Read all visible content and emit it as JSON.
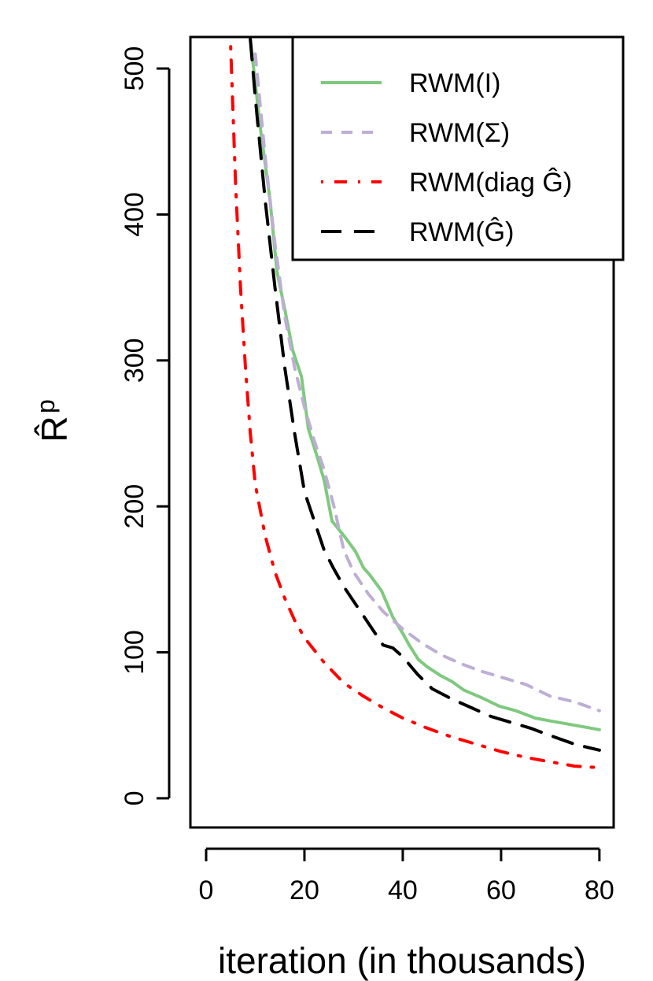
{
  "chart_data": {
    "type": "line",
    "title": "",
    "xlabel": "iteration (in thousands)",
    "ylabel": "R̂",
    "ylabel_superscript": "p",
    "xlim": [
      -3.2,
      82.9
    ],
    "ylim": [
      -20,
      521.6
    ],
    "xticks": [
      0,
      20,
      40,
      60,
      80
    ],
    "yticks": [
      0,
      100,
      200,
      300,
      400,
      500
    ],
    "grid": false,
    "legend_position": "top-right",
    "series": [
      {
        "name": "RWM(I)",
        "color": "#7fc97f",
        "dash": "solid",
        "x": [
          9,
          10,
          11,
          12,
          13,
          14.4,
          16,
          17.6,
          19.4,
          20.8,
          22.5,
          24,
          25.6,
          28,
          30.4,
          32,
          33.3,
          35.7,
          38,
          40,
          41.3,
          43.2,
          45,
          47.7,
          50,
          52.5,
          56,
          59.7,
          63,
          66.9,
          70,
          75,
          80
        ],
        "y": [
          520,
          490,
          460,
          435,
          410,
          361,
          335,
          307,
          289,
          253,
          235,
          218,
          190,
          180,
          169,
          158,
          153,
          142,
          124,
          113,
          105,
          95,
          90,
          84,
          80,
          74,
          69,
          63,
          60,
          55,
          53,
          50,
          47
        ]
      },
      {
        "name": "RWM(Σ)",
        "color": "#beaed4",
        "dash": "dashed",
        "x": [
          10,
          12,
          14,
          16,
          18,
          20,
          22,
          24,
          26,
          28,
          30,
          33,
          36,
          40,
          44,
          48,
          52,
          56,
          60,
          65,
          70,
          75,
          80
        ],
        "y": [
          510,
          440,
          380,
          330,
          295,
          268,
          245,
          225,
          200,
          170,
          155,
          140,
          128,
          116,
          106,
          98,
          92,
          87,
          83,
          78,
          70,
          66,
          60
        ]
      },
      {
        "name": "RWM(diag Ĝ)",
        "color": "#ff0000",
        "dash": "dotdash",
        "x": [
          5,
          6,
          7,
          8,
          9,
          10,
          12,
          14,
          16,
          18,
          20,
          24,
          28,
          32,
          36,
          40,
          45,
          50,
          55,
          60,
          65,
          70,
          75,
          80
        ],
        "y": [
          515,
          420,
          350,
          295,
          250,
          215,
          180,
          155,
          137,
          122,
          110,
          93,
          79,
          70,
          62,
          55,
          48,
          42,
          37,
          32,
          28,
          25,
          22,
          21
        ]
      },
      {
        "name": "RWM(Ĝ)",
        "color": "#000000",
        "dash": "longdash",
        "x": [
          9,
          10,
          12,
          14,
          16,
          18,
          20,
          22,
          24,
          26,
          28,
          30,
          33,
          36,
          38,
          40,
          43,
          46,
          50,
          54,
          58,
          62,
          66,
          70,
          75,
          80
        ],
        "y": [
          520,
          480,
          410,
          350,
          295,
          250,
          210,
          190,
          170,
          157,
          145,
          135,
          120,
          105,
          103,
          97,
          85,
          75,
          68,
          62,
          56,
          52,
          48,
          43,
          37,
          33
        ]
      }
    ]
  }
}
